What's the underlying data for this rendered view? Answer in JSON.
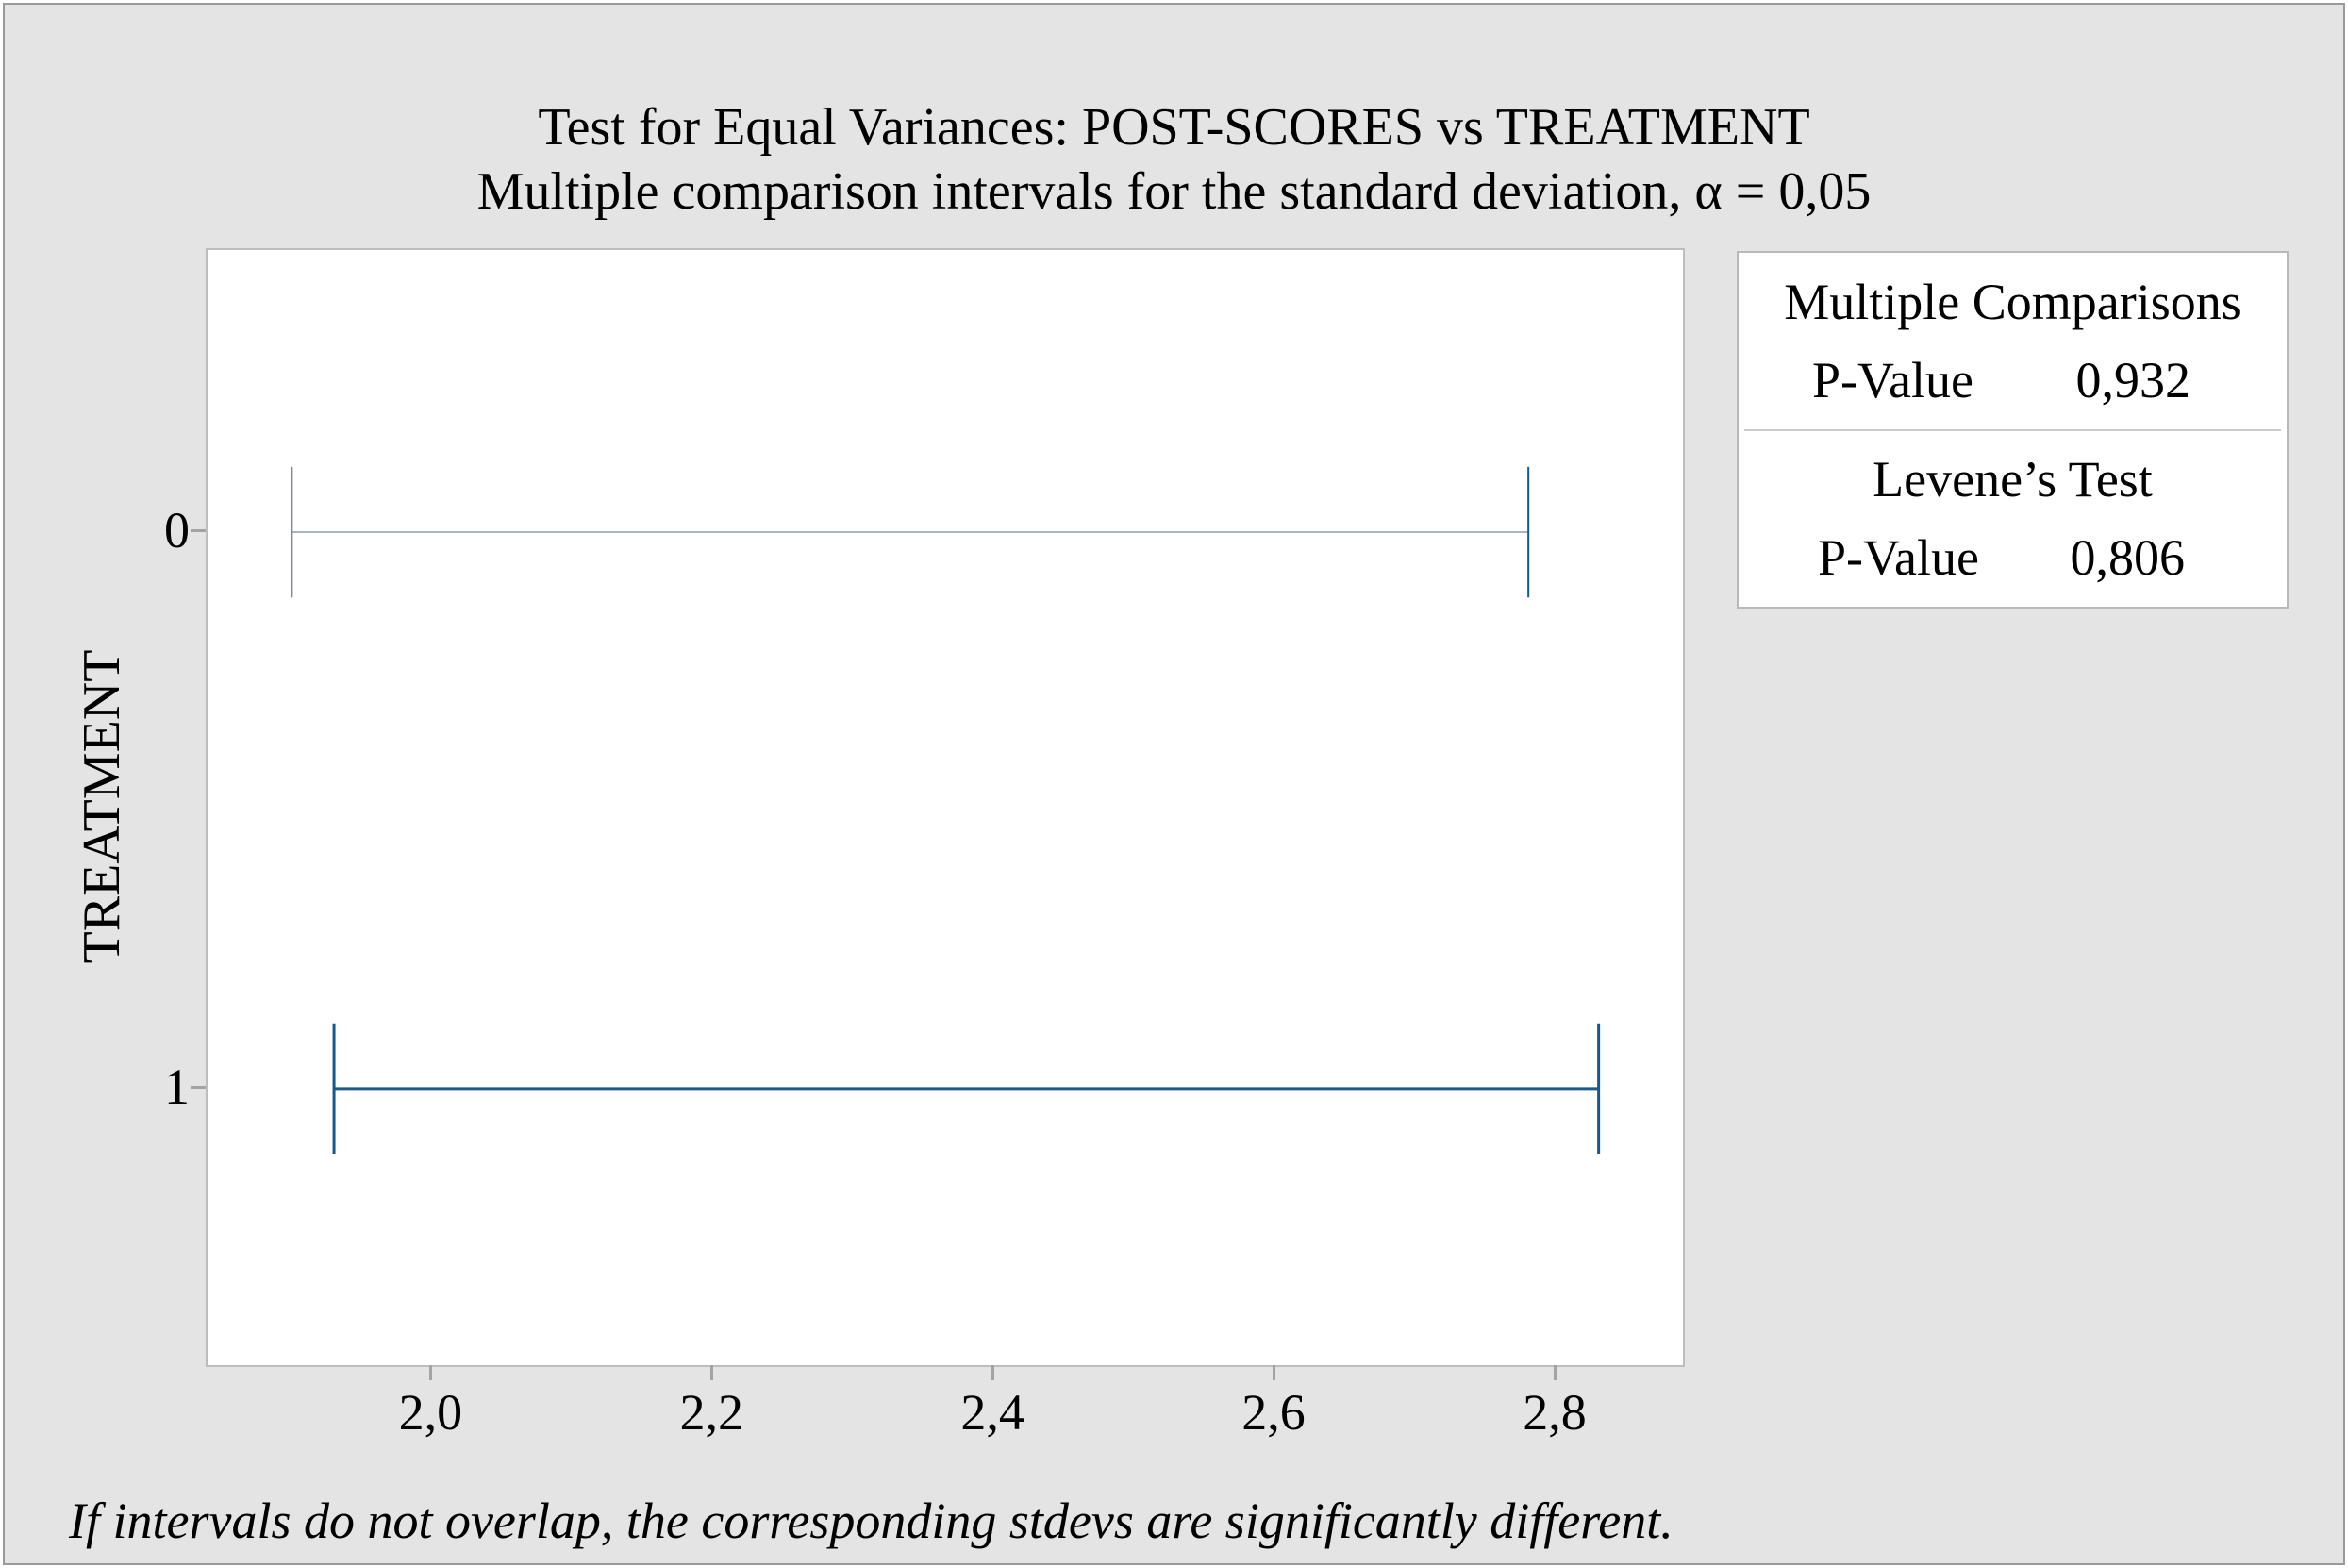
{
  "chart_data": {
    "type": "interval",
    "title": "Test for Equal Variances: POST-SCORES vs TREATMENT",
    "subtitle": "Multiple comparison intervals for the standard deviation, α = 0,05",
    "ylabel": "TREATMENT",
    "categories": [
      "0",
      "1"
    ],
    "intervals": [
      {
        "category": "0",
        "lower": 1.9,
        "upper": 2.78,
        "y_frac": 0.253,
        "line_color": "#a7b4c7",
        "cap_left_color": "#7387a8",
        "cap_right_color": "#0d5c9b",
        "line_width": 2
      },
      {
        "category": "1",
        "lower": 1.93,
        "upper": 2.83,
        "y_frac": 0.752,
        "line_color": "#1b5a8b",
        "cap_left_color": "#14588e",
        "cap_right_color": "#14588e",
        "line_width": 3
      }
    ],
    "xlim": [
      1.84,
      2.89
    ],
    "xticks": [
      2.0,
      2.2,
      2.4,
      2.6,
      2.8
    ],
    "xtick_labels": [
      "2,0",
      "2,2",
      "2,4",
      "2,6",
      "2,8"
    ],
    "decimal_separator": ",",
    "grid": false,
    "cap_half_frac": 0.0585,
    "legend_position": "none",
    "footnote": "If intervals do not overlap, the corresponding stdevs are significantly different."
  },
  "stats_panel": {
    "sections": [
      {
        "title": "Multiple Comparisons",
        "rows": [
          {
            "label": "P-Value",
            "value": "0,932"
          }
        ]
      },
      {
        "title": "Levene’s Test",
        "rows": [
          {
            "label": "P-Value",
            "value": "0,806"
          }
        ]
      }
    ]
  },
  "colors": {
    "background": "#e4e4e4",
    "plot_background": "#ffffff",
    "plot_border": "#bdbdbd",
    "tick_mark": "#a3a3a3",
    "panel_border": "#b8b8b8",
    "panel_divider": "#cbcbcb",
    "interval_dark_blue": "#11598f",
    "interval_light_blue": "#a7b4c7"
  }
}
